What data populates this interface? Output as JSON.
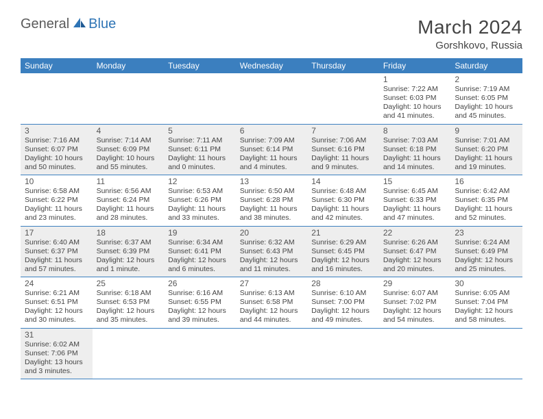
{
  "logo": {
    "text1": "General",
    "text2": "Blue"
  },
  "title": "March 2024",
  "location": "Gorshkovo, Russia",
  "brand_color": "#3b7fbf",
  "grey_bg": "#eeeeee",
  "day_headers": [
    "Sunday",
    "Monday",
    "Tuesday",
    "Wednesday",
    "Thursday",
    "Friday",
    "Saturday"
  ],
  "weeks": [
    [
      null,
      null,
      null,
      null,
      null,
      {
        "n": "1",
        "sr": "7:22 AM",
        "ss": "6:03 PM",
        "dl": "10 hours and 41 minutes."
      },
      {
        "n": "2",
        "sr": "7:19 AM",
        "ss": "6:05 PM",
        "dl": "10 hours and 45 minutes."
      }
    ],
    [
      {
        "n": "3",
        "sr": "7:16 AM",
        "ss": "6:07 PM",
        "dl": "10 hours and 50 minutes."
      },
      {
        "n": "4",
        "sr": "7:14 AM",
        "ss": "6:09 PM",
        "dl": "10 hours and 55 minutes."
      },
      {
        "n": "5",
        "sr": "7:11 AM",
        "ss": "6:11 PM",
        "dl": "11 hours and 0 minutes."
      },
      {
        "n": "6",
        "sr": "7:09 AM",
        "ss": "6:14 PM",
        "dl": "11 hours and 4 minutes."
      },
      {
        "n": "7",
        "sr": "7:06 AM",
        "ss": "6:16 PM",
        "dl": "11 hours and 9 minutes."
      },
      {
        "n": "8",
        "sr": "7:03 AM",
        "ss": "6:18 PM",
        "dl": "11 hours and 14 minutes."
      },
      {
        "n": "9",
        "sr": "7:01 AM",
        "ss": "6:20 PM",
        "dl": "11 hours and 19 minutes."
      }
    ],
    [
      {
        "n": "10",
        "sr": "6:58 AM",
        "ss": "6:22 PM",
        "dl": "11 hours and 23 minutes."
      },
      {
        "n": "11",
        "sr": "6:56 AM",
        "ss": "6:24 PM",
        "dl": "11 hours and 28 minutes."
      },
      {
        "n": "12",
        "sr": "6:53 AM",
        "ss": "6:26 PM",
        "dl": "11 hours and 33 minutes."
      },
      {
        "n": "13",
        "sr": "6:50 AM",
        "ss": "6:28 PM",
        "dl": "11 hours and 38 minutes."
      },
      {
        "n": "14",
        "sr": "6:48 AM",
        "ss": "6:30 PM",
        "dl": "11 hours and 42 minutes."
      },
      {
        "n": "15",
        "sr": "6:45 AM",
        "ss": "6:33 PM",
        "dl": "11 hours and 47 minutes."
      },
      {
        "n": "16",
        "sr": "6:42 AM",
        "ss": "6:35 PM",
        "dl": "11 hours and 52 minutes."
      }
    ],
    [
      {
        "n": "17",
        "sr": "6:40 AM",
        "ss": "6:37 PM",
        "dl": "11 hours and 57 minutes."
      },
      {
        "n": "18",
        "sr": "6:37 AM",
        "ss": "6:39 PM",
        "dl": "12 hours and 1 minute."
      },
      {
        "n": "19",
        "sr": "6:34 AM",
        "ss": "6:41 PM",
        "dl": "12 hours and 6 minutes."
      },
      {
        "n": "20",
        "sr": "6:32 AM",
        "ss": "6:43 PM",
        "dl": "12 hours and 11 minutes."
      },
      {
        "n": "21",
        "sr": "6:29 AM",
        "ss": "6:45 PM",
        "dl": "12 hours and 16 minutes."
      },
      {
        "n": "22",
        "sr": "6:26 AM",
        "ss": "6:47 PM",
        "dl": "12 hours and 20 minutes."
      },
      {
        "n": "23",
        "sr": "6:24 AM",
        "ss": "6:49 PM",
        "dl": "12 hours and 25 minutes."
      }
    ],
    [
      {
        "n": "24",
        "sr": "6:21 AM",
        "ss": "6:51 PM",
        "dl": "12 hours and 30 minutes."
      },
      {
        "n": "25",
        "sr": "6:18 AM",
        "ss": "6:53 PM",
        "dl": "12 hours and 35 minutes."
      },
      {
        "n": "26",
        "sr": "6:16 AM",
        "ss": "6:55 PM",
        "dl": "12 hours and 39 minutes."
      },
      {
        "n": "27",
        "sr": "6:13 AM",
        "ss": "6:58 PM",
        "dl": "12 hours and 44 minutes."
      },
      {
        "n": "28",
        "sr": "6:10 AM",
        "ss": "7:00 PM",
        "dl": "12 hours and 49 minutes."
      },
      {
        "n": "29",
        "sr": "6:07 AM",
        "ss": "7:02 PM",
        "dl": "12 hours and 54 minutes."
      },
      {
        "n": "30",
        "sr": "6:05 AM",
        "ss": "7:04 PM",
        "dl": "12 hours and 58 minutes."
      }
    ],
    [
      {
        "n": "31",
        "sr": "6:02 AM",
        "ss": "7:06 PM",
        "dl": "13 hours and 3 minutes."
      },
      null,
      null,
      null,
      null,
      null,
      null
    ]
  ],
  "labels": {
    "sunrise": "Sunrise:",
    "sunset": "Sunset:",
    "daylight": "Daylight:"
  }
}
